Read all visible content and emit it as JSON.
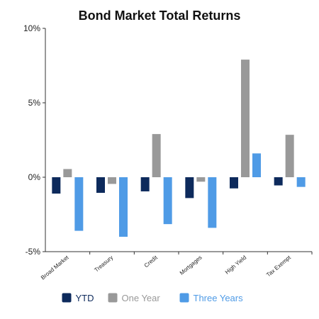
{
  "chart_data": {
    "type": "bar",
    "title": "Bond Market Total Returns",
    "categories": [
      "Broad Market",
      "Treasury",
      "Credit",
      "Mortgages",
      "High Yield",
      "Tax Exempt"
    ],
    "series": [
      {
        "name": "YTD",
        "color": "#0d2a5c",
        "values": [
          -1.1,
          -1.05,
          -0.95,
          -1.4,
          -0.75,
          -0.55
        ]
      },
      {
        "name": "One Year",
        "color": "#999999",
        "values": [
          0.55,
          -0.45,
          2.9,
          -0.3,
          7.9,
          2.85
        ]
      },
      {
        "name": "Three Years",
        "color": "#4f9be6",
        "values": [
          -3.6,
          -4.0,
          -3.15,
          -3.4,
          1.6,
          -0.65
        ]
      }
    ],
    "yticks": [
      "10%",
      "5%",
      "0%",
      "-5%"
    ],
    "ytick_values": [
      10,
      5,
      0,
      -5
    ],
    "ylim": [
      -5,
      10
    ],
    "xlabel": "",
    "ylabel": "",
    "grid": false,
    "legend_position": "bottom"
  }
}
